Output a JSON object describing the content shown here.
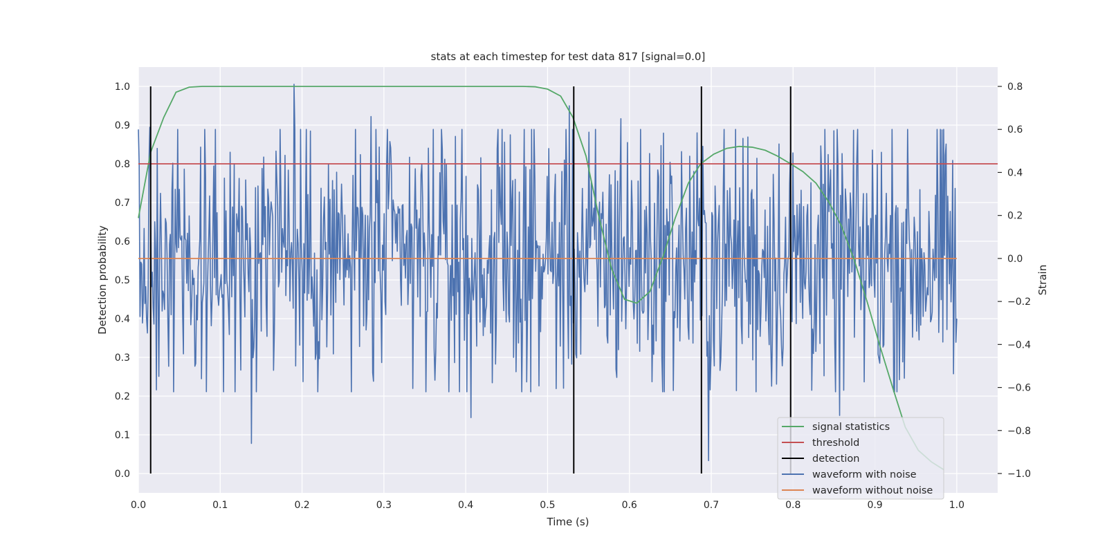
{
  "chart_data": {
    "type": "line",
    "title": "stats at each timestep for test data 817 [signal=0.0]",
    "xlabel": "Time (s)",
    "ylabel": "Detection probability",
    "ylabel2": "Strain",
    "xlim": [
      0.0,
      1.05
    ],
    "ylim": [
      -0.05,
      1.05
    ],
    "ylim2": [
      -1.09,
      0.89
    ],
    "xticks": [
      "0.0",
      "0.1",
      "0.2",
      "0.3",
      "0.4",
      "0.5",
      "0.6",
      "0.7",
      "0.8",
      "0.9",
      "1.0"
    ],
    "yticks": [
      "0.0",
      "0.1",
      "0.2",
      "0.3",
      "0.4",
      "0.5",
      "0.6",
      "0.7",
      "0.8",
      "0.9",
      "1.0"
    ],
    "yticks2": [
      "−1.0",
      "−0.8",
      "−0.6",
      "−0.4",
      "−0.2",
      "0.0",
      "0.2",
      "0.4",
      "0.6",
      "0.8"
    ],
    "grid": true,
    "legend_position": "lower-right",
    "threshold": 0.8,
    "detections": [
      0.015,
      0.532,
      0.688,
      0.797
    ],
    "signal_statistics": {
      "name": "signal statistics",
      "color": "#55a868",
      "x": [
        0.0,
        0.015,
        0.031,
        0.046,
        0.062,
        0.078,
        0.094,
        0.125,
        0.2,
        0.3,
        0.4,
        0.47,
        0.485,
        0.5,
        0.516,
        0.531,
        0.547,
        0.562,
        0.578,
        0.594,
        0.609,
        0.625,
        0.641,
        0.656,
        0.672,
        0.687,
        0.703,
        0.719,
        0.734,
        0.75,
        0.766,
        0.781,
        0.797,
        0.812,
        0.828,
        0.844,
        0.859,
        0.875,
        0.891,
        0.906,
        0.922,
        0.937,
        0.953,
        0.969,
        0.984
      ],
      "y": [
        0.66,
        0.83,
        0.92,
        0.985,
        0.998,
        1.0,
        1.0,
        1.0,
        1.0,
        1.0,
        1.0,
        1.0,
        0.999,
        0.993,
        0.975,
        0.92,
        0.82,
        0.67,
        0.53,
        0.45,
        0.44,
        0.47,
        0.56,
        0.66,
        0.75,
        0.8,
        0.825,
        0.84,
        0.845,
        0.843,
        0.835,
        0.82,
        0.8,
        0.78,
        0.75,
        0.7,
        0.64,
        0.55,
        0.44,
        0.33,
        0.22,
        0.12,
        0.06,
        0.03,
        0.01
      ]
    },
    "waveform_without_noise": {
      "name": "waveform without noise",
      "color": "#dd8452",
      "x": [
        0.0,
        1.0
      ],
      "strain": [
        0.0,
        0.0
      ]
    },
    "waveform_with_noise": {
      "name": "waveform with noise",
      "color": "#4c72b0",
      "n_points": 1000,
      "x_range": [
        0.0,
        1.0
      ],
      "strain_range": [
        -0.98,
        0.81
      ],
      "peaks": [
        {
          "x": 0.014,
          "strain": 0.61
        },
        {
          "x": 0.19,
          "strain": 0.81
        },
        {
          "x": 0.284,
          "strain": 0.66
        },
        {
          "x": 0.138,
          "strain": -0.86
        },
        {
          "x": 0.406,
          "strain": -0.74
        },
        {
          "x": 0.527,
          "strain": 0.71
        },
        {
          "x": 0.59,
          "strain": 0.65
        },
        {
          "x": 0.697,
          "strain": -0.94
        },
        {
          "x": 0.857,
          "strain": -0.73
        },
        {
          "x": 0.921,
          "strain": 0.6
        }
      ],
      "strain_end": -0.28
    },
    "legend": [
      "signal statistics",
      "threshold",
      "detection",
      "waveform with noise",
      "waveform without noise"
    ],
    "colors": {
      "threshold": "#c44e52",
      "detection": "#000000",
      "background": "#eaeaf2",
      "grid": "#ffffff"
    }
  }
}
